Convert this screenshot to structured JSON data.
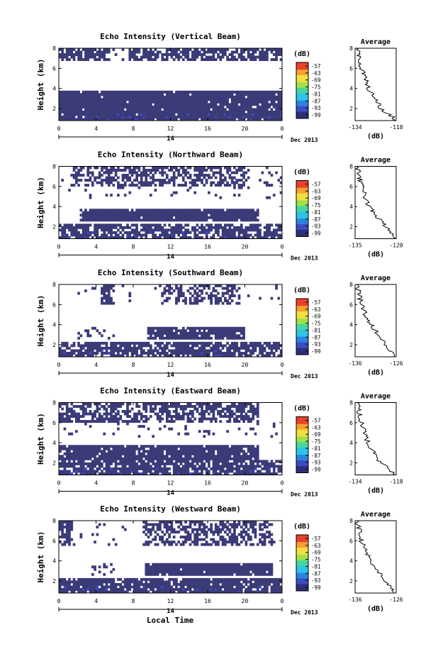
{
  "colorbar": {
    "unit_label": "(dB)",
    "tick_labels": [
      "-57",
      "-63",
      "-69",
      "-75",
      "-81",
      "-87",
      "-93",
      "-99"
    ],
    "colors": [
      "#2b2d7a",
      "#3a4cc0",
      "#2b85e0",
      "#2ec4e6",
      "#47d6a0",
      "#9ee04a",
      "#f0e040",
      "#f5a030",
      "#e8402a"
    ]
  },
  "shared": {
    "date_label": "Dec 2013",
    "day_label": "14",
    "x_axis_title": "Local Time",
    "y_axis_title": "Height (km)",
    "avg_title": "Average",
    "avg_xlabel": "(dB)",
    "time_ticks": [
      "0",
      "4",
      "8",
      "12",
      "16",
      "20",
      "0"
    ],
    "height_ticks": [
      "2",
      "4",
      "6",
      "8"
    ]
  },
  "chart_data": [
    {
      "type": "heatmap",
      "title": "Echo Intensity (Vertical Beam)",
      "xlabel": "Local Time",
      "ylabel": "Height (km)",
      "xlim": [
        0,
        24
      ],
      "ylim": [
        0.8,
        8
      ],
      "fill_color": "#3b3b78",
      "average_profile": {
        "xlim": [
          -134,
          -118
        ],
        "xticks": [
          "-134",
          "-118"
        ],
        "height": [
          1.0,
          2.0,
          3.0,
          4.0,
          5.0,
          6.0,
          7.0,
          8.0
        ],
        "db": [
          -118.5,
          -124,
          -126,
          -129,
          -130,
          -131.5,
          -132.5,
          -133
        ]
      }
    },
    {
      "type": "heatmap",
      "title": "Echo Intensity (Northward Beam)",
      "xlabel": "Local Time",
      "ylabel": "Height (km)",
      "xlim": [
        0,
        24
      ],
      "ylim": [
        0.8,
        8
      ],
      "fill_color": "#3b3b78",
      "average_profile": {
        "xlim": [
          -135,
          -120
        ],
        "xticks": [
          "-135",
          "-120"
        ],
        "height": [
          1.0,
          2.0,
          3.0,
          4.0,
          5.0,
          6.0,
          7.0,
          8.0
        ],
        "db": [
          -120.5,
          -124,
          -127,
          -130,
          -131.5,
          -132.5,
          -133.5,
          -134
        ]
      }
    },
    {
      "type": "heatmap",
      "title": "Echo Intensity (Southward Beam)",
      "xlabel": "Local Time",
      "ylabel": "Height (km)",
      "xlim": [
        0,
        24
      ],
      "ylim": [
        0.8,
        8
      ],
      "fill_color": "#3b3b78",
      "average_profile": {
        "xlim": [
          -136,
          -126
        ],
        "xticks": [
          "-136",
          "-126"
        ],
        "height": [
          1.0,
          2.0,
          3.0,
          4.0,
          5.0,
          6.0,
          7.0,
          8.0
        ],
        "db": [
          -126.5,
          -128.5,
          -130.5,
          -132,
          -133.5,
          -134.5,
          -135,
          -135.5
        ]
      }
    },
    {
      "type": "heatmap",
      "title": "Echo Intensity (Eastward Beam)",
      "xlabel": "Local Time",
      "ylabel": "Height (km)",
      "xlim": [
        0,
        24
      ],
      "ylim": [
        0.8,
        8
      ],
      "fill_color": "#3b3b78",
      "average_profile": {
        "xlim": [
          -134,
          -118
        ],
        "xticks": [
          "-134",
          "-118"
        ],
        "height": [
          1.0,
          2.0,
          3.0,
          4.0,
          5.0,
          6.0,
          7.0,
          8.0
        ],
        "db": [
          -119,
          -124,
          -126.5,
          -129,
          -130.5,
          -131.5,
          -132.5,
          -133
        ]
      }
    },
    {
      "type": "heatmap",
      "title": "Echo Intensity (Westward Beam)",
      "xlabel": "Local Time",
      "ylabel": "Height (km)",
      "xlim": [
        0,
        24
      ],
      "ylim": [
        0.8,
        8
      ],
      "fill_color": "#3b3b78",
      "average_profile": {
        "xlim": [
          -136,
          -126
        ],
        "xticks": [
          "-136",
          "-126"
        ],
        "height": [
          1.0,
          2.0,
          3.0,
          4.0,
          5.0,
          6.0,
          7.0,
          8.0
        ],
        "db": [
          -126.5,
          -128.5,
          -130.5,
          -132,
          -133.5,
          -134.5,
          -135,
          -135.5
        ]
      }
    }
  ]
}
